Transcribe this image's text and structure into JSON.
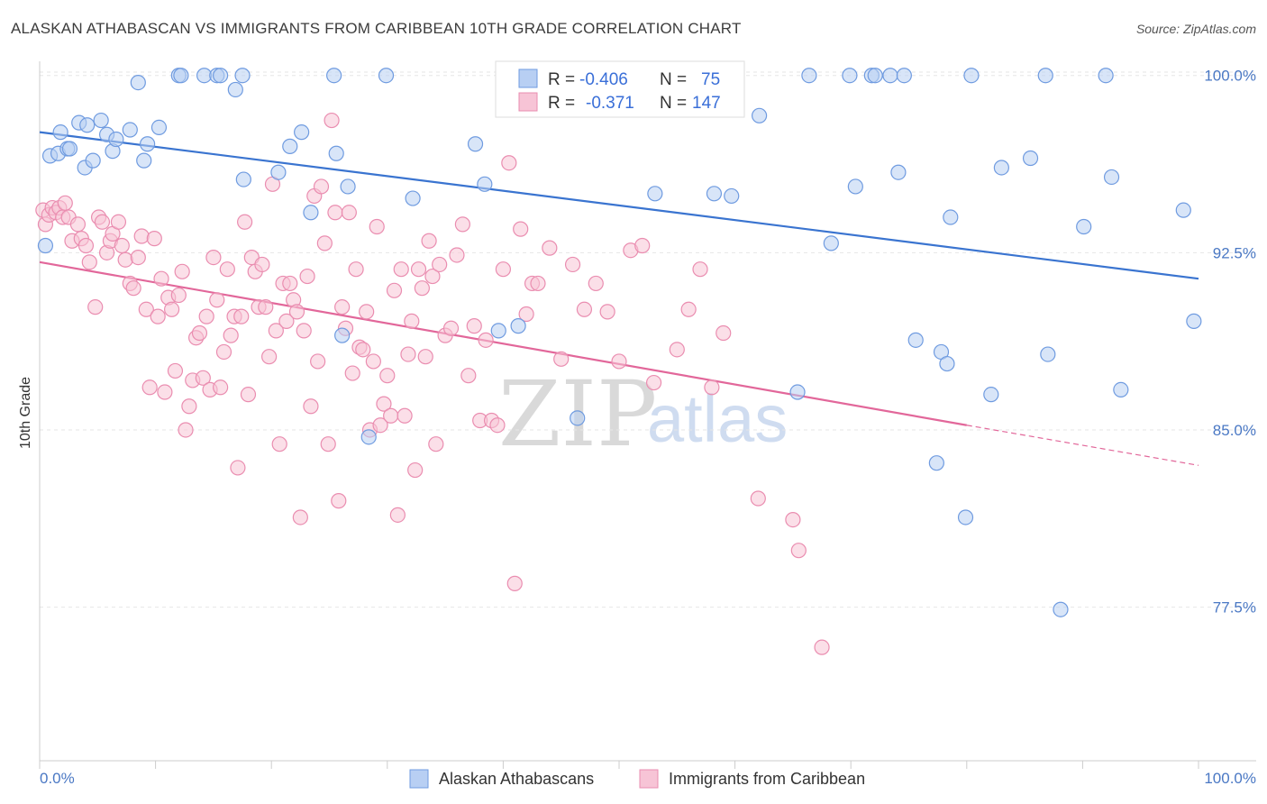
{
  "title": "ALASKAN ATHABASCAN VS IMMIGRANTS FROM CARIBBEAN 10TH GRADE CORRELATION CHART",
  "source": "Source: ZipAtlas.com",
  "watermark": {
    "zip": "ZIP",
    "atlas": "atlas"
  },
  "chart_data": {
    "type": "scatter",
    "title": "ALASKAN ATHABASCAN VS IMMIGRANTS FROM CARIBBEAN 10TH GRADE CORRELATION CHART",
    "xlabel": "",
    "ylabel": "10th Grade",
    "xlim": [
      0,
      100
    ],
    "ylim": [
      71.0,
      100.6
    ],
    "x_tick_labels": [
      "0.0%",
      "100.0%"
    ],
    "y_ticks": [
      77.5,
      85.0,
      92.5,
      100.0
    ],
    "y_tick_labels": [
      "77.5%",
      "85.0%",
      "92.5%",
      "100.0%"
    ],
    "grid": true,
    "legend_placement": "top-center",
    "legend": [
      {
        "r_label": "R =",
        "r": "-0.406",
        "n_label": "N =",
        "n": "75"
      },
      {
        "r_label": "R =",
        "r": "-0.371",
        "n_label": "N =",
        "n": "147"
      }
    ],
    "series": [
      {
        "name": "Alaskan Athabascans",
        "color": "#6f9be0",
        "fill": "#b8cff3",
        "trend": {
          "x": [
            0,
            100
          ],
          "y": [
            97.6,
            91.4
          ]
        },
        "points": [
          [
            0.5,
            92.8
          ],
          [
            0.9,
            96.6
          ],
          [
            1.6,
            96.7
          ],
          [
            1.8,
            97.6
          ],
          [
            2.4,
            96.9
          ],
          [
            2.6,
            96.9
          ],
          [
            3.4,
            98.0
          ],
          [
            3.9,
            96.1
          ],
          [
            4.1,
            97.9
          ],
          [
            4.6,
            96.4
          ],
          [
            5.3,
            98.1
          ],
          [
            5.8,
            97.5
          ],
          [
            6.3,
            96.8
          ],
          [
            6.6,
            97.3
          ],
          [
            7.8,
            97.7
          ],
          [
            8.5,
            99.7
          ],
          [
            9.0,
            96.4
          ],
          [
            9.3,
            97.1
          ],
          [
            10.3,
            97.8
          ],
          [
            12.0,
            100.0
          ],
          [
            12.2,
            100.0
          ],
          [
            14.2,
            100.0
          ],
          [
            15.3,
            100.0
          ],
          [
            15.6,
            100.0
          ],
          [
            16.9,
            99.4
          ],
          [
            17.5,
            100.0
          ],
          [
            17.6,
            95.6
          ],
          [
            20.6,
            95.9
          ],
          [
            21.6,
            97.0
          ],
          [
            22.6,
            97.6
          ],
          [
            23.4,
            94.2
          ],
          [
            25.4,
            100.0
          ],
          [
            25.6,
            96.7
          ],
          [
            26.1,
            89.0
          ],
          [
            26.6,
            95.3
          ],
          [
            28.4,
            84.7
          ],
          [
            29.9,
            100.0
          ],
          [
            32.2,
            94.8
          ],
          [
            37.6,
            97.1
          ],
          [
            38.4,
            95.4
          ],
          [
            39.6,
            89.2
          ],
          [
            41.3,
            89.4
          ],
          [
            46.4,
            85.5
          ],
          [
            47.4,
            100.0
          ],
          [
            53.1,
            95.0
          ],
          [
            58.2,
            95.0
          ],
          [
            59.7,
            94.9
          ],
          [
            62.1,
            98.3
          ],
          [
            65.4,
            86.6
          ],
          [
            66.4,
            100.0
          ],
          [
            68.3,
            92.9
          ],
          [
            69.9,
            100.0
          ],
          [
            70.4,
            95.3
          ],
          [
            71.8,
            100.0
          ],
          [
            72.1,
            100.0
          ],
          [
            73.4,
            100.0
          ],
          [
            74.1,
            95.9
          ],
          [
            74.6,
            100.0
          ],
          [
            75.6,
            88.8
          ],
          [
            77.4,
            83.6
          ],
          [
            77.8,
            88.3
          ],
          [
            78.3,
            87.8
          ],
          [
            78.6,
            94.0
          ],
          [
            79.9,
            81.3
          ],
          [
            80.4,
            100.0
          ],
          [
            82.1,
            86.5
          ],
          [
            83.0,
            96.1
          ],
          [
            85.5,
            96.5
          ],
          [
            86.8,
            100.0
          ],
          [
            87.0,
            88.2
          ],
          [
            88.1,
            77.4
          ],
          [
            90.1,
            93.6
          ],
          [
            92.0,
            100.0
          ],
          [
            92.5,
            95.7
          ],
          [
            93.3,
            86.7
          ],
          [
            98.7,
            94.3
          ],
          [
            99.6,
            89.6
          ]
        ]
      },
      {
        "name": "Immigrants from Caribbean",
        "color": "#ea8db0",
        "fill": "#f7c4d6",
        "trend": {
          "x": [
            0,
            80,
            100
          ],
          "y": [
            92.1,
            85.2,
            83.5
          ],
          "dashed_from_x": 80
        },
        "points": [
          [
            0.3,
            94.3
          ],
          [
            0.5,
            93.7
          ],
          [
            0.8,
            94.1
          ],
          [
            1.1,
            94.4
          ],
          [
            1.4,
            94.2
          ],
          [
            1.7,
            94.4
          ],
          [
            2.0,
            94.0
          ],
          [
            2.2,
            94.6
          ],
          [
            2.5,
            94.0
          ],
          [
            2.8,
            93.0
          ],
          [
            3.3,
            93.7
          ],
          [
            3.6,
            93.1
          ],
          [
            4.0,
            92.8
          ],
          [
            4.3,
            92.1
          ],
          [
            4.8,
            90.2
          ],
          [
            5.1,
            94.0
          ],
          [
            5.4,
            93.8
          ],
          [
            5.8,
            92.5
          ],
          [
            6.1,
            93.0
          ],
          [
            6.3,
            93.3
          ],
          [
            6.8,
            93.8
          ],
          [
            7.1,
            92.8
          ],
          [
            7.4,
            92.2
          ],
          [
            7.8,
            91.2
          ],
          [
            8.1,
            91.0
          ],
          [
            8.5,
            92.3
          ],
          [
            8.8,
            93.2
          ],
          [
            9.2,
            90.1
          ],
          [
            9.5,
            86.8
          ],
          [
            9.9,
            93.1
          ],
          [
            10.2,
            89.8
          ],
          [
            10.5,
            91.4
          ],
          [
            10.8,
            86.6
          ],
          [
            11.1,
            90.6
          ],
          [
            11.4,
            90.1
          ],
          [
            11.7,
            87.5
          ],
          [
            12.0,
            90.7
          ],
          [
            12.3,
            91.7
          ],
          [
            12.6,
            85.0
          ],
          [
            12.9,
            86.0
          ],
          [
            13.2,
            87.1
          ],
          [
            13.5,
            88.9
          ],
          [
            13.8,
            89.1
          ],
          [
            14.1,
            87.2
          ],
          [
            14.4,
            89.8
          ],
          [
            14.7,
            86.7
          ],
          [
            15.0,
            92.3
          ],
          [
            15.3,
            90.5
          ],
          [
            15.6,
            86.8
          ],
          [
            15.9,
            88.3
          ],
          [
            16.2,
            91.8
          ],
          [
            16.5,
            89.0
          ],
          [
            16.8,
            89.8
          ],
          [
            17.1,
            83.4
          ],
          [
            17.4,
            89.8
          ],
          [
            17.7,
            93.8
          ],
          [
            18.0,
            86.5
          ],
          [
            18.3,
            92.3
          ],
          [
            18.6,
            91.7
          ],
          [
            18.9,
            90.2
          ],
          [
            19.2,
            92.0
          ],
          [
            19.5,
            90.2
          ],
          [
            19.8,
            88.1
          ],
          [
            20.1,
            95.4
          ],
          [
            20.4,
            89.2
          ],
          [
            20.7,
            84.4
          ],
          [
            21.0,
            91.2
          ],
          [
            21.3,
            89.6
          ],
          [
            21.6,
            91.2
          ],
          [
            21.9,
            90.5
          ],
          [
            22.2,
            90.0
          ],
          [
            22.5,
            81.3
          ],
          [
            22.8,
            89.2
          ],
          [
            23.1,
            91.5
          ],
          [
            23.4,
            86.0
          ],
          [
            23.7,
            94.9
          ],
          [
            24.0,
            87.9
          ],
          [
            24.3,
            95.3
          ],
          [
            24.6,
            92.9
          ],
          [
            24.9,
            84.4
          ],
          [
            25.2,
            98.1
          ],
          [
            25.5,
            94.2
          ],
          [
            25.8,
            82.0
          ],
          [
            26.1,
            90.2
          ],
          [
            26.4,
            89.3
          ],
          [
            26.7,
            94.2
          ],
          [
            27.0,
            87.4
          ],
          [
            27.3,
            91.8
          ],
          [
            27.6,
            88.5
          ],
          [
            27.9,
            88.4
          ],
          [
            28.2,
            90.0
          ],
          [
            28.5,
            85.0
          ],
          [
            28.8,
            87.9
          ],
          [
            29.1,
            93.6
          ],
          [
            29.4,
            85.2
          ],
          [
            29.7,
            86.1
          ],
          [
            30.0,
            87.3
          ],
          [
            30.3,
            85.6
          ],
          [
            30.6,
            90.9
          ],
          [
            30.9,
            81.4
          ],
          [
            31.2,
            91.8
          ],
          [
            31.5,
            85.6
          ],
          [
            31.8,
            88.2
          ],
          [
            32.1,
            89.6
          ],
          [
            32.4,
            83.3
          ],
          [
            32.7,
            91.8
          ],
          [
            33.0,
            91.0
          ],
          [
            33.3,
            88.1
          ],
          [
            33.6,
            93.0
          ],
          [
            33.9,
            91.5
          ],
          [
            34.2,
            84.4
          ],
          [
            34.5,
            92.0
          ],
          [
            35.0,
            89.0
          ],
          [
            35.5,
            89.3
          ],
          [
            36.0,
            92.4
          ],
          [
            36.5,
            93.7
          ],
          [
            37.0,
            87.3
          ],
          [
            37.5,
            89.4
          ],
          [
            38.0,
            85.4
          ],
          [
            38.5,
            88.8
          ],
          [
            39.0,
            85.4
          ],
          [
            39.5,
            85.2
          ],
          [
            40.0,
            91.8
          ],
          [
            40.5,
            96.3
          ],
          [
            41.0,
            78.5
          ],
          [
            41.5,
            93.5
          ],
          [
            42.0,
            89.9
          ],
          [
            42.5,
            91.2
          ],
          [
            43.0,
            91.2
          ],
          [
            44.0,
            92.7
          ],
          [
            45.0,
            88.0
          ],
          [
            46.0,
            92.0
          ],
          [
            47.0,
            90.1
          ],
          [
            48.0,
            91.2
          ],
          [
            49.0,
            90.0
          ],
          [
            50.0,
            87.9
          ],
          [
            51.0,
            92.6
          ],
          [
            52.0,
            92.8
          ],
          [
            53.0,
            87.0
          ],
          [
            54.0,
            100.0
          ],
          [
            55.0,
            88.4
          ],
          [
            56.0,
            90.1
          ],
          [
            57.0,
            91.8
          ],
          [
            58.0,
            86.8
          ],
          [
            59.0,
            89.1
          ],
          [
            62.0,
            82.1
          ],
          [
            65.0,
            81.2
          ],
          [
            65.5,
            79.9
          ],
          [
            67.5,
            75.8
          ]
        ]
      }
    ]
  },
  "bottom_legend": [
    "Alaskan Athabascans",
    "Immigrants from Caribbean"
  ]
}
